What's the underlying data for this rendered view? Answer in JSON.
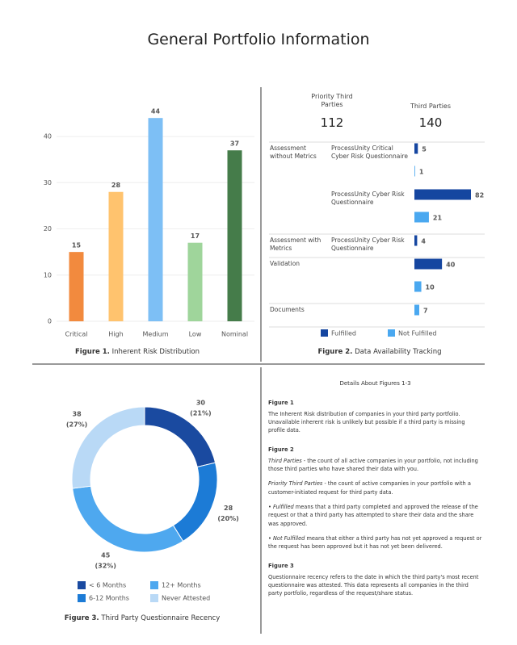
{
  "title": "General Portfolio Information",
  "chart_data": [
    {
      "type": "bar",
      "caption": {
        "label": "Figure 1.",
        "text": "Inherent Risk Distribution"
      },
      "categories": [
        "Critical",
        "High",
        "Medium",
        "Low",
        "Nominal"
      ],
      "values": [
        15,
        28,
        44,
        17,
        37
      ],
      "colors": [
        "#f28a3e",
        "#ffc36e",
        "#7dbff5",
        "#9fd59b",
        "#457c4a"
      ],
      "ylim": [
        0,
        47
      ],
      "yticks": [
        0,
        10,
        20,
        30,
        40
      ],
      "grid": true
    },
    {
      "type": "bar",
      "orientation": "horizontal",
      "caption": {
        "label": "Figure 2.",
        "text": "Data Availability Tracking"
      },
      "kpis": [
        {
          "label": "Priority Third Parties",
          "value": 112
        },
        {
          "label": "Third Parties",
          "value": 140
        }
      ],
      "groups": [
        "Assessment without Metrics",
        null,
        "Assessment with Metrics",
        "Validation",
        "Documents"
      ],
      "categories": [
        "ProcessUnity Critical Cyber Risk Questionnaire",
        "ProcessUnity Cyber Risk Questionnaire",
        "ProcessUnity Cyber Risk Questionnaire",
        null,
        null
      ],
      "series": [
        {
          "name": "Fulfilled",
          "color": "#1546a0",
          "values": [
            5,
            82,
            4,
            40,
            null
          ]
        },
        {
          "name": "Not Fulfilled",
          "color": "#4aa8f0",
          "values": [
            1,
            21,
            null,
            10,
            7
          ]
        }
      ],
      "legend": "bottom"
    },
    {
      "type": "donut",
      "caption": {
        "label": "Figure 3.",
        "text": "Third Party Questionnaire Recency"
      },
      "categories": [
        "< 6 Months",
        "6-12 Months",
        "12+ Months",
        "Never Attested"
      ],
      "values": [
        30,
        28,
        45,
        38
      ],
      "percent_labels": [
        "(21%)",
        "(20%)",
        "(32%)",
        "(27%)"
      ],
      "colors": [
        "#1a4aa0",
        "#1c7bd6",
        "#4ea8ef",
        "#b9d9f6"
      ],
      "legend": "bottom"
    }
  ],
  "details": {
    "title": "Details About Figures 1-3",
    "sections": [
      {
        "heading": "Figure 1",
        "paragraphs": [
          [
            "The Inherent Risk distribution of companies in your third party portfolio. Unavailable inherent risk is unlikely but possible if a third party is missing profile data."
          ]
        ]
      },
      {
        "heading": "Figure 2",
        "paragraphs": [
          [
            {
              "text": "Third Parties",
              "italic": true
            },
            " - the count of all active companies in your portfolio, not including those third parties who have shared their data with you."
          ],
          [
            {
              "text": "Priority Third Parties",
              "italic": true
            },
            " - the count of active companies in your portfolio with a customer-initiated request for third party data."
          ],
          [
            "• ",
            {
              "text": "Fulfilled",
              "italic": true
            },
            " means that a third party completed and approved the release of the request or that a third party has attempted to share their data and the share was approved."
          ],
          [
            "• ",
            {
              "text": "Not Fulfilled",
              "italic": true
            },
            " means that either a third party has not yet approved a request or the request has been approved but it has not yet been delivered."
          ]
        ]
      },
      {
        "heading": "Figure 3",
        "paragraphs": [
          [
            "Questionnaire recency refers to the date in which the third party's most recent questionnaire was attested. This data represents all companies in the third party portfolio, regardless of the request/share status."
          ]
        ]
      }
    ]
  }
}
